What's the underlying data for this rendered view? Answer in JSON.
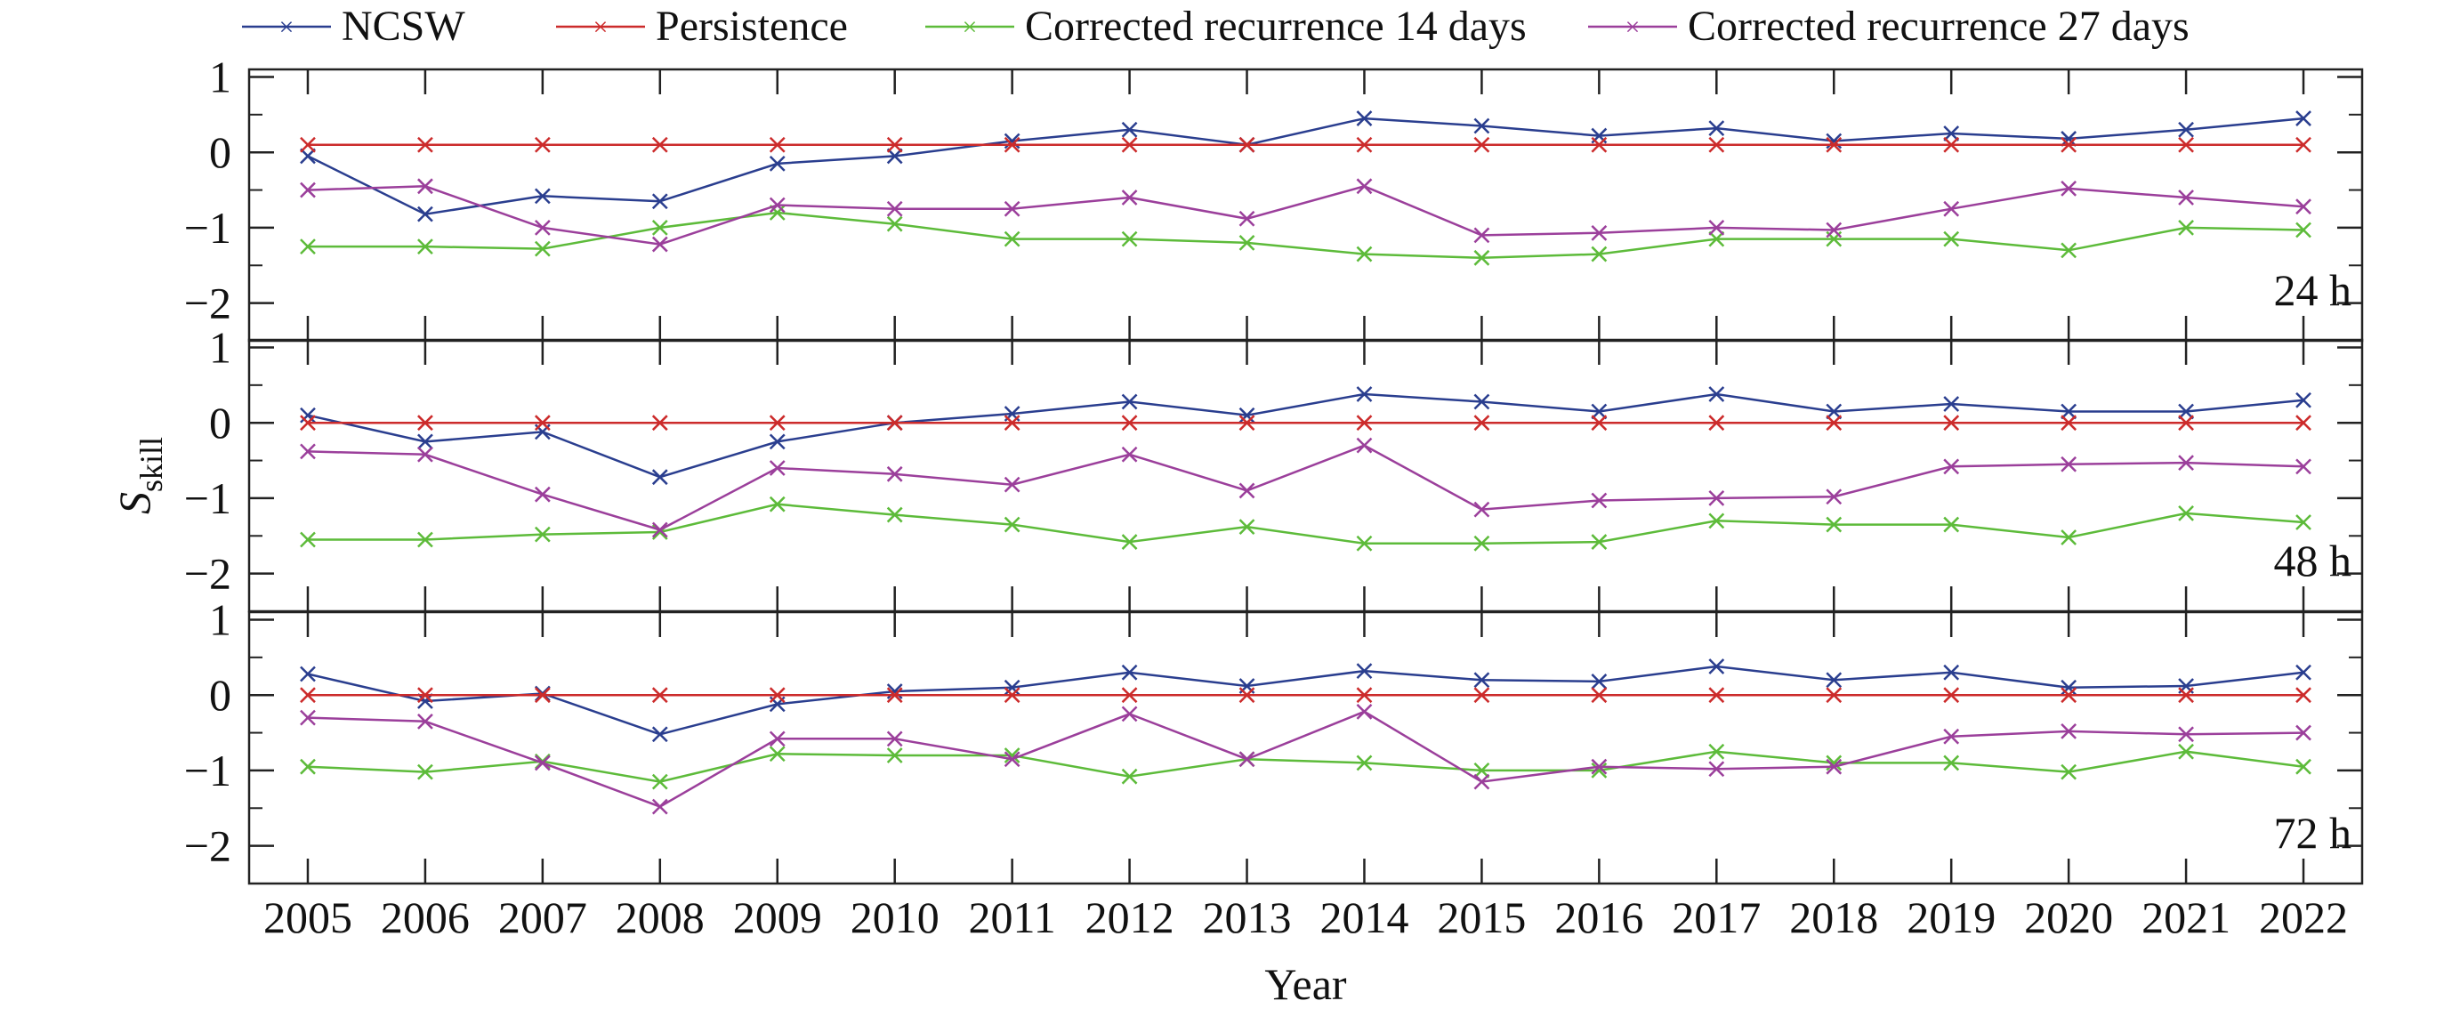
{
  "chart_data": {
    "type": "line",
    "xlabel": "Year",
    "ylabel_main": "S",
    "ylabel_sub": "skill",
    "x": [
      2005,
      2006,
      2007,
      2008,
      2009,
      2010,
      2011,
      2012,
      2013,
      2014,
      2015,
      2016,
      2017,
      2018,
      2019,
      2020,
      2021,
      2022
    ],
    "xlim": [
      2004.5,
      2022.5
    ],
    "ylim": [
      -2.5,
      1.1
    ],
    "yticks": [
      1,
      0,
      -1,
      -2
    ],
    "ytick_labels": [
      "1",
      "0",
      "−1",
      "−2"
    ],
    "legend": [
      {
        "name": "NCSW",
        "color": "#2a3e8f"
      },
      {
        "name": "Persistence",
        "color": "#cc2b2b"
      },
      {
        "name": "Corrected recurrence 14 days",
        "color": "#5dbb3a"
      },
      {
        "name": "Corrected recurrence 27 days",
        "color": "#9b3f9b"
      }
    ],
    "panels": [
      {
        "label": "24 h",
        "series": [
          {
            "name": "NCSW",
            "values": [
              -0.05,
              -0.82,
              -0.58,
              -0.65,
              -0.15,
              -0.05,
              0.15,
              0.3,
              0.1,
              0.45,
              0.35,
              0.22,
              0.32,
              0.15,
              0.25,
              0.18,
              0.3,
              0.45
            ]
          },
          {
            "name": "Persistence",
            "values": [
              0.1,
              0.1,
              0.1,
              0.1,
              0.1,
              0.1,
              0.1,
              0.1,
              0.1,
              0.1,
              0.1,
              0.1,
              0.1,
              0.1,
              0.1,
              0.1,
              0.1,
              0.1
            ]
          },
          {
            "name": "Corrected recurrence 14 days",
            "values": [
              -1.25,
              -1.25,
              -1.28,
              -1.0,
              -0.8,
              -0.95,
              -1.15,
              -1.15,
              -1.2,
              -1.35,
              -1.4,
              -1.35,
              -1.15,
              -1.15,
              -1.15,
              -1.3,
              -1.0,
              -1.03
            ]
          },
          {
            "name": "Corrected recurrence 27 days",
            "values": [
              -0.5,
              -0.45,
              -1.0,
              -1.22,
              -0.7,
              -0.75,
              -0.75,
              -0.6,
              -0.88,
              -0.45,
              -1.1,
              -1.07,
              -1.0,
              -1.03,
              -0.75,
              -0.48,
              -0.6,
              -0.72
            ]
          }
        ]
      },
      {
        "label": "48 h",
        "series": [
          {
            "name": "NCSW",
            "values": [
              0.1,
              -0.25,
              -0.12,
              -0.72,
              -0.25,
              0.0,
              0.12,
              0.28,
              0.1,
              0.38,
              0.28,
              0.15,
              0.38,
              0.15,
              0.25,
              0.15,
              0.15,
              0.3
            ]
          },
          {
            "name": "Persistence",
            "values": [
              0.0,
              0.0,
              0.0,
              0.0,
              0.0,
              0.0,
              0.0,
              0.0,
              0.0,
              0.0,
              0.0,
              0.0,
              0.0,
              0.0,
              0.0,
              0.0,
              0.0,
              0.0
            ]
          },
          {
            "name": "Corrected recurrence 14 days",
            "values": [
              -1.55,
              -1.55,
              -1.48,
              -1.45,
              -1.08,
              -1.22,
              -1.35,
              -1.58,
              -1.38,
              -1.6,
              -1.6,
              -1.58,
              -1.3,
              -1.35,
              -1.35,
              -1.52,
              -1.2,
              -1.32
            ]
          },
          {
            "name": "Corrected recurrence 27 days",
            "values": [
              -0.38,
              -0.42,
              -0.95,
              -1.42,
              -0.6,
              -0.68,
              -0.82,
              -0.42,
              -0.9,
              -0.3,
              -1.15,
              -1.03,
              -1.0,
              -0.98,
              -0.58,
              -0.55,
              -0.53,
              -0.58
            ]
          }
        ]
      },
      {
        "label": "72 h",
        "series": [
          {
            "name": "NCSW",
            "values": [
              0.28,
              -0.08,
              0.02,
              -0.52,
              -0.12,
              0.05,
              0.1,
              0.3,
              0.12,
              0.32,
              0.2,
              0.18,
              0.38,
              0.2,
              0.3,
              0.1,
              0.12,
              0.3
            ]
          },
          {
            "name": "Persistence",
            "values": [
              0.0,
              0.0,
              0.0,
              0.0,
              0.0,
              0.0,
              0.0,
              0.0,
              0.0,
              0.0,
              0.0,
              0.0,
              0.0,
              0.0,
              0.0,
              0.0,
              0.0,
              0.0
            ]
          },
          {
            "name": "Corrected recurrence 14 days",
            "values": [
              -0.95,
              -1.02,
              -0.88,
              -1.15,
              -0.78,
              -0.8,
              -0.8,
              -1.08,
              -0.85,
              -0.9,
              -1.0,
              -1.0,
              -0.75,
              -0.9,
              -0.9,
              -1.02,
              -0.75,
              -0.95
            ]
          },
          {
            "name": "Corrected recurrence 27 days",
            "values": [
              -0.3,
              -0.35,
              -0.9,
              -1.48,
              -0.58,
              -0.58,
              -0.85,
              -0.25,
              -0.85,
              -0.22,
              -1.15,
              -0.95,
              -0.98,
              -0.95,
              -0.55,
              -0.48,
              -0.52,
              -0.5
            ]
          }
        ]
      }
    ]
  }
}
